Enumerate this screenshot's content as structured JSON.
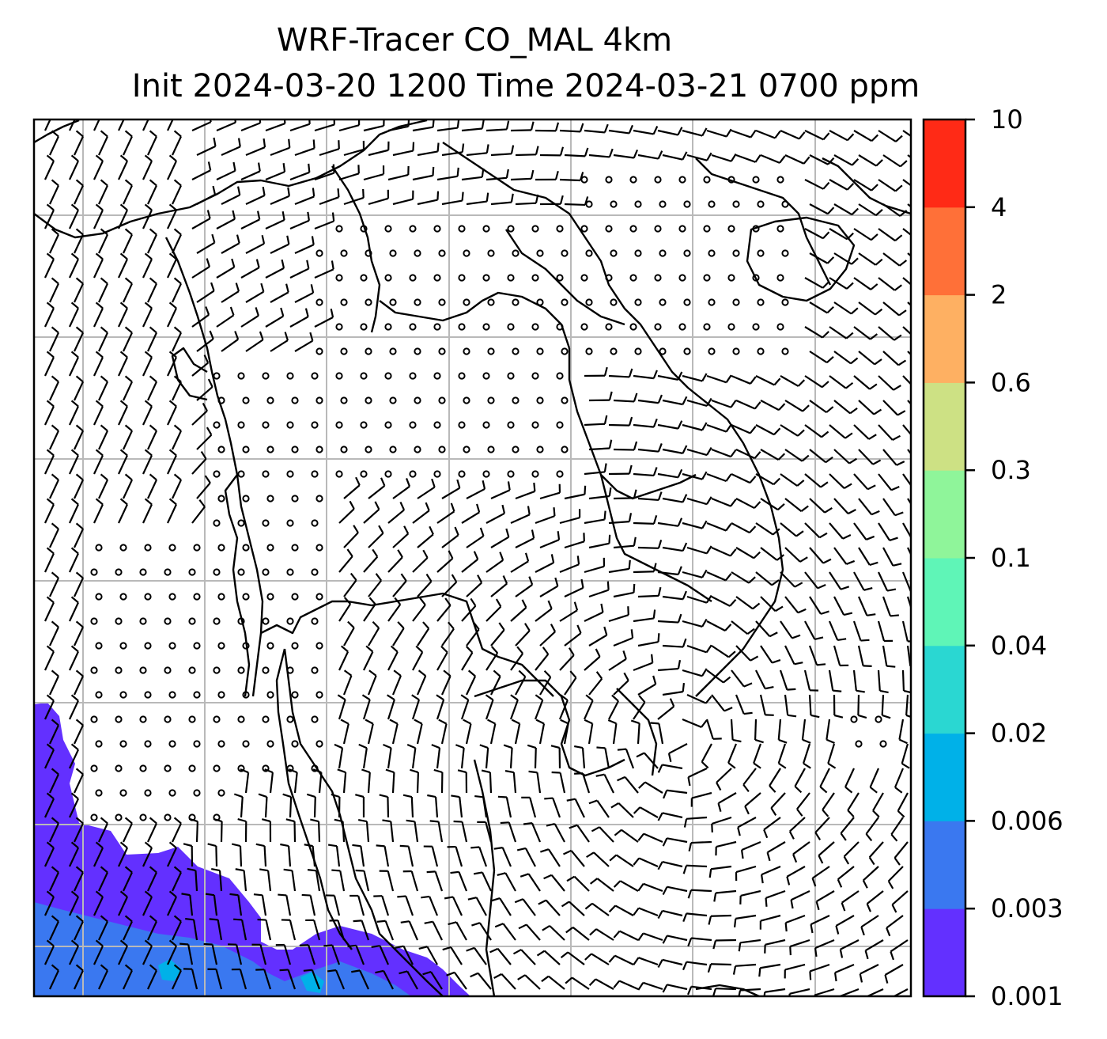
{
  "title": {
    "line1": "WRF-Tracer CO_MAL 4km",
    "line2": "Init 2024-03-20 1200 Time 2024-03-21 0700 ppm"
  },
  "colorbar": {
    "levels": [
      "0.001",
      "0.003",
      "0.006",
      "0.02",
      "0.04",
      "0.1",
      "0.3",
      "0.6",
      "2",
      "4",
      "10"
    ],
    "colors": [
      "#6330ff",
      "#3a78f0",
      "#00b1e8",
      "#2ad7d2",
      "#5ff5b7",
      "#8ff59a",
      "#cde184",
      "#feb062",
      "#ff7038",
      "#ff2a16"
    ]
  },
  "map": {
    "background": "#ffffff",
    "gridline_color": "#b9b9b9",
    "coastline_color": "#000000",
    "tracer_fill": "#6330ff",
    "tracer_low_fill": "#3a78f0",
    "tracer_trace_fill": "#00b1e8",
    "wind_barbs": "black barbs; small open circles mark calm winds"
  }
}
